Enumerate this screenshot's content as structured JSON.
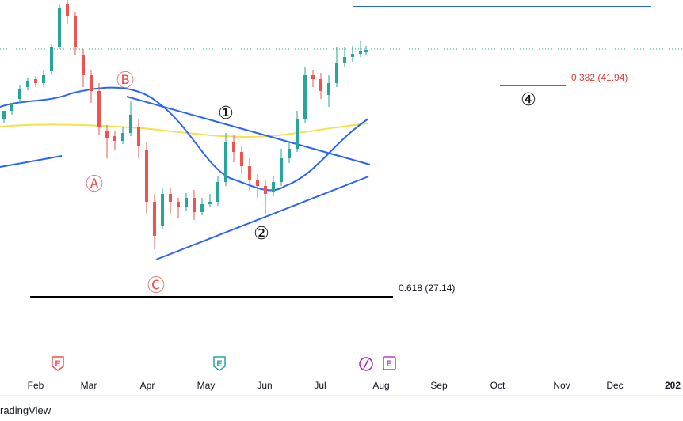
{
  "annotations": {
    "fib_382": "0.382 (41.94)",
    "fib_618": "0.618 (27.14)",
    "waves": [
      "①",
      "②",
      "④"
    ],
    "corrections": [
      "Ⓐ",
      "Ⓑ",
      "Ⓒ"
    ]
  },
  "time_axis": [
    "Feb",
    "Mar",
    "Apr",
    "May",
    "Jun",
    "Jul",
    "Aug",
    "Sep",
    "Oct",
    "Nov",
    "Dec",
    "202"
  ],
  "events": [
    "E",
    "E",
    "E"
  ],
  "footer": "radingView"
}
